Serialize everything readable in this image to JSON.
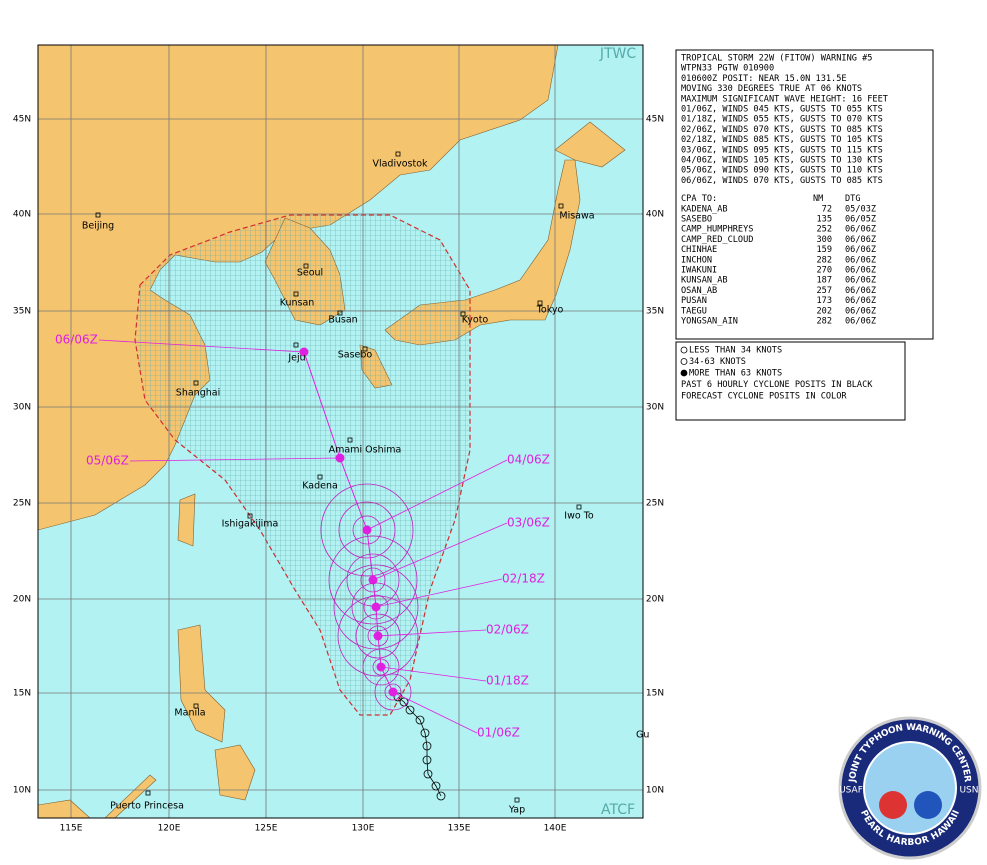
{
  "map": {
    "corner_top": "JTWC",
    "corner_bottom": "ATCF",
    "lat_labels": [
      "45N",
      "40N",
      "35N",
      "30N",
      "25N",
      "20N",
      "15N",
      "10N"
    ],
    "lon_labels": [
      "115E",
      "120E",
      "125E",
      "130E",
      "135E",
      "140E"
    ],
    "cities": [
      "Beijing",
      "Vladivostok",
      "Seoul",
      "Kunsan",
      "Busan",
      "Jeju",
      "Sasebo",
      "Kyoto",
      "Tokyo",
      "Misawa",
      "Shanghai",
      "Amami Oshima",
      "Kadena",
      "Ishigakijima",
      "Iwo To",
      "Manila",
      "Puerto Princesa",
      "Yap",
      "Gu"
    ],
    "track_labels": [
      "06/06Z",
      "05/06Z",
      "04/06Z",
      "03/06Z",
      "02/18Z",
      "02/06Z",
      "01/18Z",
      "01/06Z"
    ]
  },
  "warning": {
    "lines": [
      "TROPICAL STORM 22W (FITOW) WARNING #5",
      "WTPN33 PGTW 010900",
      "010600Z POSIT: NEAR 15.0N 131.5E",
      "MOVING 330 DEGREES TRUE AT 06 KNOTS",
      "MAXIMUM SIGNIFICANT WAVE HEIGHT: 16 FEET",
      "01/06Z, WINDS 045 KTS, GUSTS TO 055 KTS",
      "01/18Z, WINDS 055 KTS, GUSTS TO 070 KTS",
      "02/06Z, WINDS 070 KTS, GUSTS TO 085 KTS",
      "02/18Z, WINDS 085 KTS, GUSTS TO 105 KTS",
      "03/06Z, WINDS 095 KTS, GUSTS TO 115 KTS",
      "04/06Z, WINDS 105 KTS, GUSTS TO 130 KTS",
      "05/06Z, WINDS 090 KTS, GUSTS TO 110 KTS",
      "06/06Z, WINDS 070 KTS, GUSTS TO 085 KTS"
    ],
    "cpa_header": [
      "CPA TO:",
      "NM",
      "DTG"
    ],
    "cpa_rows": [
      [
        "KADENA_AB",
        72,
        "05/03Z"
      ],
      [
        "SASEBO",
        135,
        "06/05Z"
      ],
      [
        "CAMP_HUMPHREYS",
        252,
        "06/06Z"
      ],
      [
        "CAMP_RED_CLOUD",
        300,
        "06/06Z"
      ],
      [
        "CHINHAE",
        159,
        "06/06Z"
      ],
      [
        "INCHON",
        282,
        "06/06Z"
      ],
      [
        "IWAKUNI",
        270,
        "06/06Z"
      ],
      [
        "KUNSAN_AB",
        187,
        "06/06Z"
      ],
      [
        "OSAN_AB",
        257,
        "06/06Z"
      ],
      [
        "PUSAN",
        173,
        "06/06Z"
      ],
      [
        "TAEGU",
        202,
        "06/06Z"
      ],
      [
        "YONGSAN_AIN",
        282,
        "06/06Z"
      ]
    ]
  },
  "legend": {
    "lines": [
      "LESS THAN 34 KNOTS",
      "34-63 KNOTS",
      "MORE THAN 63 KNOTS",
      "PAST 6 HOURLY CYCLONE POSITS IN BLACK",
      "FORECAST CYCLONE POSITS IN COLOR"
    ]
  },
  "logo": {
    "top": "JOINT TYPHOON WARNING CENTER",
    "bottom": "PEARL HARBOR HAWAII",
    "left": "USAF",
    "right": "USN"
  }
}
